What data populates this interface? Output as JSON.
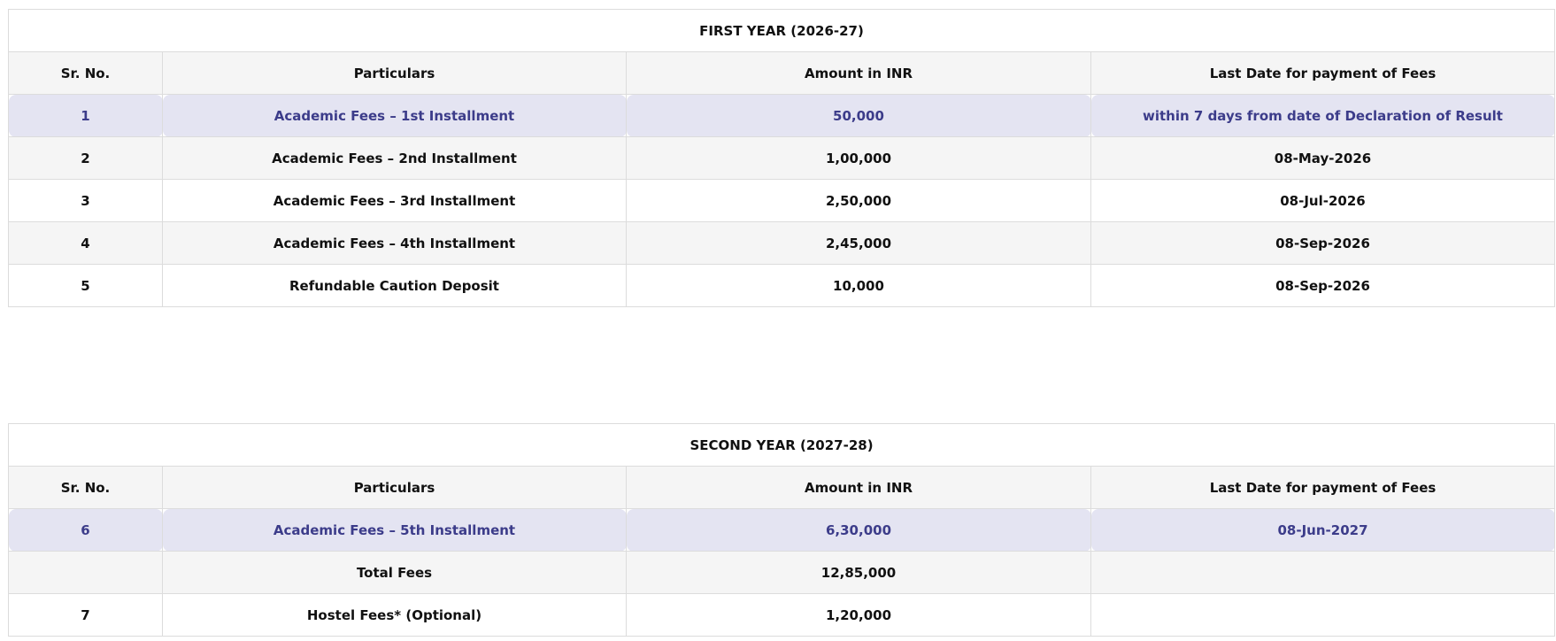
{
  "tables": [
    {
      "title": "FIRST YEAR (2026-27)",
      "header": [
        "Sr. No.",
        "Particulars",
        "Amount in INR",
        "Last Date for payment of Fees"
      ],
      "rows": [
        [
          "1",
          "Academic Fees – 1st Installment",
          "50,000",
          "within 7 days from date of Declaration of Result"
        ],
        [
          "2",
          "Academic Fees – 2nd Installment",
          "1,00,000",
          "08-May-2026"
        ],
        [
          "3",
          "Academic Fees – 3rd Installment",
          "2,50,000",
          "08-Jul-2026"
        ],
        [
          "4",
          "Academic Fees – 4th Installment",
          "2,45,000",
          "08-Sep-2026"
        ],
        [
          "5",
          "Refundable Caution Deposit",
          "10,000",
          "08-Sep-2026"
        ]
      ]
    },
    {
      "title": "SECOND YEAR (2027-28)",
      "header": [
        "Sr. No.",
        "Particulars",
        "Amount in INR",
        "Last Date for payment of Fees"
      ],
      "rows": [
        [
          "6",
          "Academic Fees – 5th Installment",
          "6,30,000",
          "08-Jun-2027"
        ],
        [
          null,
          "Total Fees",
          "12,85,000",
          null
        ],
        [
          "7",
          "Hostel Fees* (Optional)",
          "1,20,000",
          null
        ]
      ]
    }
  ]
}
